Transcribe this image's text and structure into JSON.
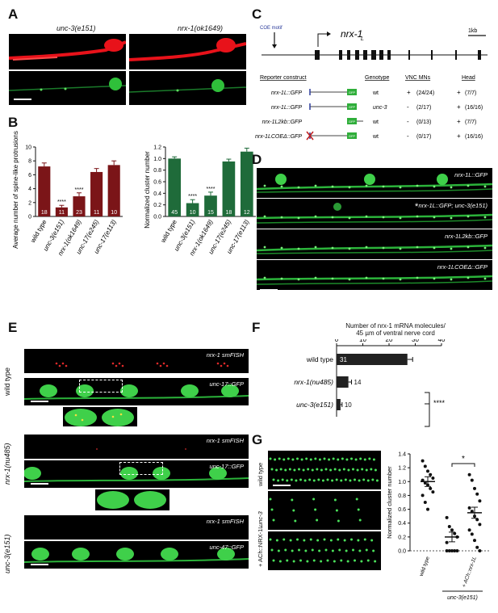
{
  "panels": {
    "A": {
      "label": "A",
      "left_title": "unc-3(e151)",
      "right_title": "nrx-1(ok1649)"
    },
    "B": {
      "label": "B",
      "left_chart_ylabel": "Average number of spine-like protrusions",
      "right_chart_ylabel": "Normalized cluster number",
      "significance": "****"
    },
    "C": {
      "label": "C",
      "coe_motif": "COE motif",
      "gene_name": "nrx-1",
      "gene_sub": "L",
      "scale": "1kb",
      "headers": [
        "Reporter construct",
        "Genotype",
        "VNC MNs",
        "Head"
      ],
      "rows": [
        {
          "construct": "nrx-1L::GFP",
          "genotype": "wt",
          "vnc_sign": "+",
          "vnc": "(24/24)",
          "head_sign": "+",
          "head": "(7/7)"
        },
        {
          "construct": "nrx-1L::GFP",
          "genotype": "unc-3",
          "vnc_sign": "-",
          "vnc": "(2/17)",
          "head_sign": "+",
          "head": "(16/16)"
        },
        {
          "construct": "nrx-1L2kb::GFP",
          "genotype": "wt",
          "vnc_sign": "-",
          "vnc": "(0/13)",
          "head_sign": "+",
          "head": "(7/7)"
        },
        {
          "construct": "nrx-1LCOEΔ::GFP",
          "genotype": "wt",
          "vnc_sign": "-",
          "vnc": "(0/17)",
          "head_sign": "+",
          "head": "(16/16)"
        }
      ],
      "gfp": "GFP"
    },
    "D": {
      "label": "D",
      "strips": [
        "nrx-1L::GFP",
        "nrx-1L::GFP; unc-3(e151)",
        "nrx-1L2kb::GFP",
        "nrx-1LCOEΔ::GFP"
      ],
      "asterisk": "*"
    },
    "E": {
      "label": "E",
      "genotypes": [
        "wild type",
        "nrx-1(nu485)",
        "unc-3(e151)"
      ],
      "fish_label": "nrx-1 smFISH",
      "gfp_labels": [
        "unc-17::GFP",
        "unc-17::GFP",
        "unc-47::GFP"
      ]
    },
    "F": {
      "label": "F",
      "title_line1": "Number of nrx-1 mRNA molecules/",
      "title_line2": "45 µm of ventral nerve cord",
      "significance": "****"
    },
    "G": {
      "label": "G",
      "strip_labels": [
        "wild type",
        "unc-3",
        "+ ACh::NRX-1L"
      ],
      "ylabel": "Normalized cluster number",
      "xlabels": [
        "wild type",
        "+ ACh::nrx-1L"
      ],
      "group_label": "unc-3(e151)",
      "significance": "*"
    }
  },
  "chart_data": [
    {
      "type": "bar",
      "id": "B-left",
      "categories": [
        "wild type",
        "unc-3(e151)",
        "nrx-1(ok1649)",
        "unc-17(e245)",
        "unc-17(e113)"
      ],
      "values": [
        7.2,
        1.3,
        2.9,
        6.4,
        7.4
      ],
      "errors": [
        0.5,
        0.3,
        0.5,
        0.5,
        0.6
      ],
      "n": [
        "18",
        "11",
        "23",
        "11",
        "10"
      ],
      "stars": [
        "",
        "****",
        "****",
        "",
        ""
      ],
      "yticks": [
        0,
        2,
        4,
        6,
        8,
        10
      ],
      "ylim": [
        0,
        10
      ],
      "color": "#7b1518"
    },
    {
      "type": "bar",
      "id": "B-right",
      "categories": [
        "wild type",
        "unc-3(e151)",
        "nrx-1(ok1649)",
        "unc-17(e245)",
        "unc-17(e113)"
      ],
      "values": [
        1.0,
        0.23,
        0.36,
        0.95,
        1.12
      ],
      "errors": [
        0.03,
        0.06,
        0.06,
        0.04,
        0.06
      ],
      "n": [
        "45",
        "10",
        "15",
        "18",
        "12"
      ],
      "stars": [
        "",
        "****",
        "****",
        "",
        ""
      ],
      "yticks": [
        "0.0",
        "0.2",
        "0.4",
        "0.6",
        "0.8",
        "1.0",
        "1.2"
      ],
      "ylim": [
        0,
        1.2
      ],
      "color": "#1f6b3a"
    },
    {
      "type": "bar",
      "id": "F",
      "orientation": "horizontal",
      "categories": [
        "wild type",
        "nrx-1(nu485)",
        "unc-3(e151)"
      ],
      "values": [
        27,
        4.5,
        1.5
      ],
      "errors": [
        2,
        1.2,
        0.6
      ],
      "n": [
        "31",
        "14",
        "10"
      ],
      "xticks": [
        0,
        10,
        20,
        30,
        40
      ],
      "xlim": [
        0,
        40
      ],
      "color": "#222222"
    },
    {
      "type": "scatter",
      "id": "G",
      "categories": [
        "wild type",
        "+ ACh::nrx-1L"
      ],
      "groups": [
        {
          "name": "wild type",
          "mean": 1.0,
          "sem": 0.07,
          "points": [
            1.3,
            1.22,
            1.15,
            1.1,
            1.05,
            1.02,
            0.98,
            0.95,
            0.9,
            0.85,
            0.8,
            0.7,
            0.6
          ]
        },
        {
          "name": "unc-3",
          "mean": 0.2,
          "sem": 0.07,
          "points": [
            0.48,
            0.35,
            0.3,
            0.25,
            0.2,
            0.12,
            0.0,
            0.0,
            0.0,
            0.0,
            0.0
          ]
        },
        {
          "name": "+ ACh::nrx-1L",
          "mean": 0.55,
          "sem": 0.08,
          "points": [
            1.1,
            1.02,
            0.9,
            0.82,
            0.72,
            0.62,
            0.57,
            0.5,
            0.45,
            0.38,
            0.3,
            0.24,
            0.15,
            0.05,
            0.0
          ]
        }
      ],
      "yticks": [
        "0.0",
        "0.2",
        "0.4",
        "0.6",
        "0.8",
        "1.0",
        "1.2",
        "1.4"
      ],
      "ylim": [
        0,
        1.4
      ]
    }
  ]
}
